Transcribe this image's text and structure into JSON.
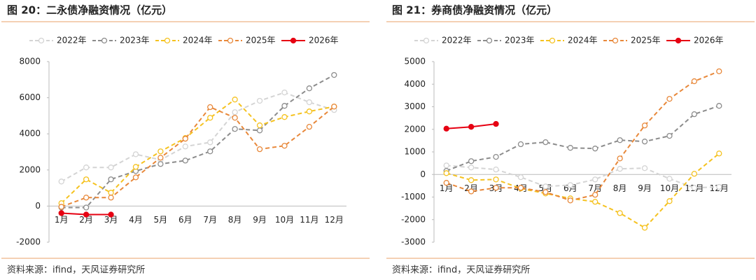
{
  "chart_data": [
    {
      "type": "line",
      "title": "图 20：二永债净融资情况（亿元）",
      "source": "资料来源：ifind，天风证券研究所",
      "categories": [
        "1月",
        "2月",
        "3月",
        "4月",
        "5月",
        "6月",
        "7月",
        "8月",
        "9月",
        "10月",
        "11月",
        "12月"
      ],
      "ylim": [
        -2000,
        8000
      ],
      "yticks": [
        -2000,
        0,
        2000,
        4000,
        6000,
        8000
      ],
      "series": [
        {
          "name": "2022年",
          "color": "#d4d4d4",
          "line_style": "dashed",
          "values": [
            1360,
            2140,
            2140,
            2870,
            2560,
            3300,
            3530,
            5200,
            5830,
            6290,
            5750,
            5320
          ]
        },
        {
          "name": "2023年",
          "color": "#8c8c8c",
          "line_style": "dashed",
          "values": [
            -80,
            -80,
            1480,
            1940,
            2330,
            2520,
            3030,
            4270,
            4190,
            5550,
            6520,
            7260
          ]
        },
        {
          "name": "2024年",
          "color": "#f5c220",
          "line_style": "dashed",
          "values": [
            160,
            1480,
            740,
            2170,
            3030,
            3770,
            4890,
            5900,
            4470,
            4930,
            5240,
            5510
          ]
        },
        {
          "name": "2025年",
          "color": "#e8883a",
          "line_style": "dashed",
          "values": [
            -40,
            470,
            470,
            1590,
            2680,
            3730,
            5480,
            4890,
            3150,
            3340,
            4390,
            5510
          ]
        },
        {
          "name": "2026年",
          "color": "#e60012",
          "line_style": "solid",
          "values": [
            -390,
            -470,
            -470,
            null,
            null,
            null,
            null,
            null,
            null,
            null,
            null,
            null
          ]
        }
      ]
    },
    {
      "type": "line",
      "title": "图 21：券商债净融资情况（亿元）",
      "source": "资料来源：ifind，天风证券研究所",
      "categories": [
        "1月",
        "2月",
        "3月",
        "4月",
        "5月",
        "6月",
        "7月",
        "8月",
        "9月",
        "10月",
        "11月",
        "12月"
      ],
      "ylim": [
        -3000,
        5000
      ],
      "yticks": [
        -3000,
        -2000,
        -1000,
        0,
        1000,
        2000,
        3000,
        4000,
        5000
      ],
      "series": [
        {
          "name": "2022年",
          "color": "#d4d4d4",
          "line_style": "dashed",
          "values": [
            400,
            310,
            220,
            -120,
            -530,
            -470,
            -220,
            250,
            280,
            -190,
            -590,
            -550
          ]
        },
        {
          "name": "2023年",
          "color": "#8c8c8c",
          "line_style": "dashed",
          "values": [
            160,
            590,
            780,
            1340,
            1430,
            1180,
            1150,
            1520,
            1460,
            1710,
            2670,
            3040
          ]
        },
        {
          "name": "2024年",
          "color": "#f5c220",
          "line_style": "dashed",
          "values": [
            60,
            -250,
            -220,
            -620,
            -840,
            -1060,
            -1210,
            -1710,
            -2360,
            -1180,
            30,
            930
          ]
        },
        {
          "name": "2025年",
          "color": "#e8883a",
          "line_style": "dashed",
          "values": [
            -370,
            -750,
            -590,
            -590,
            -780,
            -1150,
            -900,
            710,
            2170,
            3350,
            4130,
            4570
          ]
        },
        {
          "name": "2026年",
          "color": "#e60012",
          "line_style": "solid",
          "values": [
            2030,
            2110,
            2240,
            null,
            null,
            null,
            null,
            null,
            null,
            null,
            null,
            null
          ]
        }
      ]
    }
  ]
}
